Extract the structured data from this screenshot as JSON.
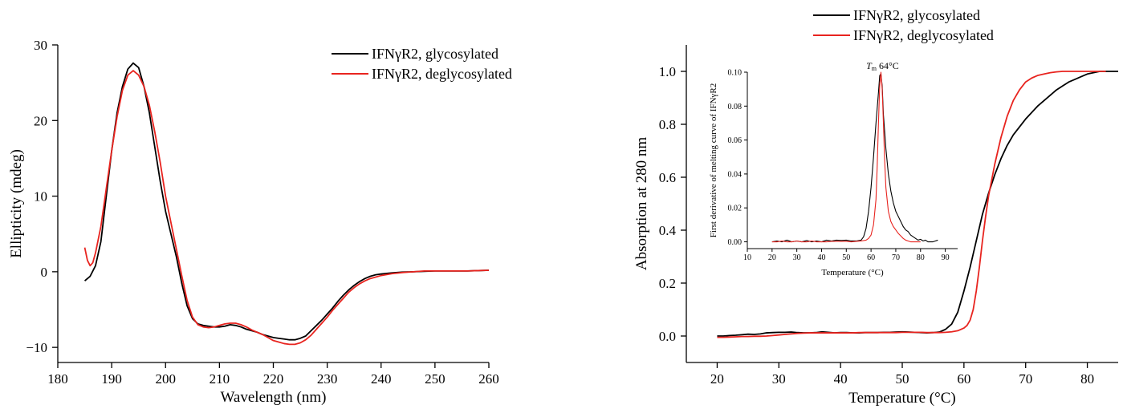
{
  "chart_data": [
    {
      "type": "line",
      "xlabel": "Wavelength (nm)",
      "ylabel": "Ellipticity (mdeg)",
      "xlim": [
        180,
        260
      ],
      "ylim": [
        -12,
        30
      ],
      "xticks": [
        180,
        190,
        200,
        210,
        220,
        230,
        240,
        250,
        260
      ],
      "yticks": [
        -10,
        0,
        10,
        20,
        30
      ],
      "ytick_labels": [
        "−10",
        "0",
        "10",
        "20",
        "30"
      ],
      "legend": "top-right",
      "grid": false,
      "series": [
        {
          "name": "IFNγR2, glycosylated",
          "color": "#000000",
          "x": [
            185,
            186,
            187,
            188,
            189,
            190,
            191,
            192,
            193,
            194,
            195,
            196,
            197,
            198,
            199,
            200,
            201,
            202,
            203,
            204,
            205,
            206,
            207,
            208,
            209,
            210,
            211,
            212,
            213,
            214,
            215,
            216,
            217,
            218,
            219,
            220,
            221,
            222,
            223,
            224,
            225,
            226,
            227,
            228,
            229,
            230,
            231,
            232,
            233,
            234,
            235,
            236,
            237,
            238,
            239,
            240,
            242,
            244,
            246,
            248,
            250,
            252,
            254,
            256,
            258,
            260
          ],
          "y": [
            -1.2,
            -0.6,
            0.8,
            4,
            10,
            16,
            21,
            24.5,
            26.8,
            27.6,
            27,
            24.5,
            21,
            16.5,
            12,
            8,
            5,
            2,
            -1.5,
            -4.5,
            -6.2,
            -6.9,
            -7.1,
            -7.2,
            -7.3,
            -7.3,
            -7.2,
            -7,
            -7.1,
            -7.3,
            -7.6,
            -7.8,
            -8,
            -8.3,
            -8.5,
            -8.7,
            -8.8,
            -8.9,
            -9,
            -9,
            -8.8,
            -8.5,
            -7.8,
            -7.1,
            -6.4,
            -5.6,
            -4.8,
            -3.9,
            -3.1,
            -2.4,
            -1.8,
            -1.3,
            -0.9,
            -0.6,
            -0.4,
            -0.3,
            -0.15,
            -0.05,
            0,
            0.05,
            0.1,
            0.1,
            0.1,
            0.1,
            0.15,
            0.2
          ]
        },
        {
          "name": "IFNγR2, deglycosylated",
          "color": "#e8241f",
          "x": [
            185,
            185.5,
            186,
            186.5,
            187,
            188,
            189,
            190,
            191,
            192,
            193,
            194,
            195,
            196,
            197,
            198,
            199,
            200,
            201,
            202,
            203,
            204,
            205,
            206,
            207,
            208,
            209,
            210,
            211,
            212,
            213,
            214,
            215,
            216,
            217,
            218,
            219,
            220,
            221,
            222,
            223,
            224,
            225,
            226,
            227,
            228,
            229,
            230,
            231,
            232,
            233,
            234,
            235,
            236,
            237,
            238,
            239,
            240,
            242,
            244,
            246,
            248,
            250,
            252,
            254,
            256,
            258,
            260
          ],
          "y": [
            3.2,
            1.5,
            0.8,
            1.2,
            2.5,
            6,
            11,
            16,
            20.5,
            24,
            26,
            26.6,
            26,
            24.5,
            22,
            18.5,
            14.5,
            10,
            6.5,
            3,
            -0.5,
            -3.8,
            -6,
            -7,
            -7.3,
            -7.4,
            -7.3,
            -7.1,
            -6.9,
            -6.8,
            -6.8,
            -7,
            -7.3,
            -7.7,
            -8,
            -8.3,
            -8.7,
            -9.1,
            -9.3,
            -9.5,
            -9.6,
            -9.6,
            -9.4,
            -9,
            -8.4,
            -7.6,
            -6.8,
            -6,
            -5.1,
            -4.3,
            -3.5,
            -2.7,
            -2.1,
            -1.6,
            -1.2,
            -0.9,
            -0.7,
            -0.5,
            -0.25,
            -0.1,
            0,
            0.1,
            0.1,
            0.1,
            0.1,
            0.1,
            0.15,
            0.2
          ]
        }
      ]
    },
    {
      "type": "line",
      "xlabel": "Temperature (°C)",
      "ylabel": "Absorption at 280 nm",
      "xlim": [
        15,
        85
      ],
      "ylim": [
        -0.1,
        1.1
      ],
      "xticks": [
        20,
        30,
        40,
        50,
        60,
        70,
        80
      ],
      "yticks": [
        0.0,
        0.2,
        0.4,
        0.6,
        0.8,
        1.0
      ],
      "ytick_labels": [
        "0.0",
        "0.2",
        "0.4",
        "0.6",
        "0.8",
        "1.0"
      ],
      "legend": "top-right",
      "grid": false,
      "series": [
        {
          "name": "IFNγR2, glycosylated",
          "color": "#000000",
          "x": [
            20,
            21,
            22,
            23,
            24,
            25,
            26,
            27,
            28,
            29,
            30,
            31,
            32,
            33,
            34,
            35,
            36,
            37,
            38,
            39,
            40,
            41,
            42,
            43,
            44,
            45,
            46,
            47,
            48,
            49,
            50,
            51,
            52,
            53,
            54,
            55,
            56,
            57,
            58,
            59,
            60,
            61,
            62,
            63,
            64,
            65,
            66,
            67,
            68,
            69,
            70,
            71,
            72,
            73,
            74,
            75,
            76,
            77,
            78,
            79,
            80,
            81,
            82,
            83,
            84,
            85
          ],
          "y": [
            0,
            0,
            0.002,
            0.003,
            0.005,
            0.007,
            0.006,
            0.008,
            0.012,
            0.013,
            0.014,
            0.014,
            0.015,
            0.013,
            0.012,
            0.012,
            0.013,
            0.016,
            0.014,
            0.012,
            0.013,
            0.013,
            0.012,
            0.012,
            0.013,
            0.013,
            0.013,
            0.014,
            0.014,
            0.015,
            0.016,
            0.015,
            0.014,
            0.013,
            0.012,
            0.013,
            0.015,
            0.025,
            0.045,
            0.09,
            0.17,
            0.26,
            0.36,
            0.46,
            0.54,
            0.61,
            0.67,
            0.72,
            0.76,
            0.79,
            0.82,
            0.845,
            0.87,
            0.89,
            0.91,
            0.93,
            0.945,
            0.96,
            0.97,
            0.98,
            0.99,
            0.995,
            1.0,
            1.0,
            1.0,
            1.0
          ]
        },
        {
          "name": "IFNγR2, deglycosylated",
          "color": "#e8241f",
          "x": [
            20,
            21,
            22,
            23,
            24,
            25,
            26,
            27,
            28,
            29,
            30,
            31,
            32,
            33,
            34,
            35,
            36,
            37,
            38,
            39,
            40,
            41,
            42,
            43,
            44,
            45,
            46,
            47,
            48,
            49,
            50,
            51,
            52,
            53,
            54,
            55,
            56,
            57,
            58,
            59,
            60,
            60.5,
            61,
            61.5,
            62,
            62.5,
            63,
            63.5,
            64,
            65,
            66,
            67,
            68,
            69,
            70,
            71,
            72,
            73,
            74,
            75,
            76,
            77,
            78,
            79,
            80,
            81,
            82,
            83
          ],
          "y": [
            -0.005,
            -0.005,
            -0.004,
            -0.003,
            -0.002,
            -0.002,
            -0.001,
            -0.001,
            0,
            0.002,
            0.004,
            0.006,
            0.008,
            0.01,
            0.011,
            0.012,
            0.012,
            0.012,
            0.012,
            0.012,
            0.012,
            0.012,
            0.012,
            0.013,
            0.013,
            0.013,
            0.013,
            0.013,
            0.013,
            0.013,
            0.014,
            0.014,
            0.014,
            0.014,
            0.013,
            0.013,
            0.013,
            0.014,
            0.016,
            0.02,
            0.03,
            0.04,
            0.06,
            0.1,
            0.17,
            0.26,
            0.36,
            0.45,
            0.53,
            0.65,
            0.75,
            0.83,
            0.89,
            0.93,
            0.96,
            0.975,
            0.985,
            0.99,
            0.995,
            0.998,
            1.0,
            1.0,
            1.0,
            1.0,
            1.0,
            1.0,
            1.0,
            1.0
          ]
        }
      ],
      "inset": {
        "type": "line",
        "xlabel": "Temperature (°C)",
        "ylabel": "First derivative of melting curve of IFNγR2",
        "xlim": [
          10,
          95
        ],
        "ylim": [
          -0.004,
          0.1
        ],
        "xticks": [
          10,
          20,
          30,
          40,
          50,
          60,
          70,
          80,
          90
        ],
        "yticks": [
          0.0,
          0.02,
          0.04,
          0.06,
          0.08,
          0.1
        ],
        "ytick_labels": [
          "0.00",
          "0.02",
          "0.04",
          "0.06",
          "0.08",
          "0.10"
        ],
        "annotation": {
          "text": "T",
          "sub": "m",
          "tail": " 64°C",
          "x": 64
        },
        "series": [
          {
            "name": "IFNγR2, glycosylated",
            "color": "#000000",
            "x": [
              20,
              22,
              24,
              26,
              28,
              30,
              32,
              34,
              36,
              38,
              40,
              42,
              44,
              46,
              48,
              50,
              52,
              54,
              56,
              57,
              58,
              59,
              60,
              61,
              62,
              63,
              63.5,
              64,
              64.5,
              65,
              66,
              67,
              68,
              69,
              70,
              71,
              72,
              73,
              74,
              75,
              76,
              77,
              78,
              79,
              80,
              81,
              82,
              83,
              84,
              85,
              86,
              87
            ],
            "y": [
              0,
              0.0005,
              0,
              0.001,
              0,
              0.0005,
              0,
              0.0008,
              0,
              0.0005,
              0,
              0.001,
              0.0005,
              0.001,
              0.0008,
              0.001,
              0.0005,
              0.0005,
              0.001,
              0.003,
              0.008,
              0.018,
              0.032,
              0.05,
              0.07,
              0.088,
              0.098,
              0.099,
              0.092,
              0.075,
              0.055,
              0.04,
              0.03,
              0.023,
              0.018,
              0.015,
              0.012,
              0.009,
              0.007,
              0.006,
              0.004,
              0.003,
              0.002,
              0.001,
              0.0015,
              0.0005,
              0.001,
              0,
              0,
              0,
              0.0005,
              0.001
            ]
          },
          {
            "name": "IFNγR2, deglycosylated",
            "color": "#e8241f",
            "x": [
              20,
              22,
              24,
              26,
              28,
              30,
              32,
              34,
              36,
              38,
              40,
              42,
              44,
              46,
              48,
              50,
              52,
              54,
              56,
              58,
              59,
              60,
              61,
              62,
              62.5,
              63,
              63.5,
              64,
              64.5,
              65,
              65.5,
              66,
              67,
              68,
              69,
              70,
              71,
              72,
              73,
              74,
              75,
              76,
              77,
              78,
              79,
              80
            ],
            "y": [
              0,
              0,
              0.0005,
              0,
              0,
              0.0005,
              0,
              0,
              0.0005,
              0,
              0,
              0,
              0.0003,
              0.0003,
              0.0003,
              0.0003,
              0,
              0.0003,
              0.0005,
              0.001,
              0.002,
              0.004,
              0.01,
              0.025,
              0.045,
              0.07,
              0.092,
              0.1,
              0.09,
              0.07,
              0.048,
              0.032,
              0.018,
              0.012,
              0.009,
              0.007,
              0.005,
              0.0035,
              0.002,
              0.001,
              0.0005,
              0,
              0,
              0,
              0,
              0
            ]
          }
        ]
      }
    }
  ]
}
